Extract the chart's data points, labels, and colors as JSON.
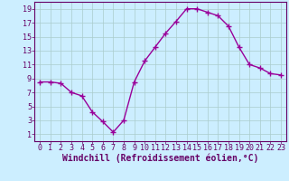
{
  "x": [
    0,
    1,
    2,
    3,
    4,
    5,
    6,
    7,
    8,
    9,
    10,
    11,
    12,
    13,
    14,
    15,
    16,
    17,
    18,
    19,
    20,
    21,
    22,
    23
  ],
  "y": [
    8.5,
    8.5,
    8.3,
    7.0,
    6.5,
    4.2,
    2.8,
    1.3,
    3.0,
    8.5,
    11.5,
    13.5,
    15.5,
    17.2,
    19.0,
    19.0,
    18.5,
    18.0,
    16.5,
    13.5,
    11.0,
    10.5,
    9.7,
    9.5
  ],
  "line_color": "#990099",
  "marker": "+",
  "marker_size": 4,
  "marker_color": "#990099",
  "line_width": 1.0,
  "bg_color": "#cceeff",
  "grid_color": "#aacccc",
  "xlabel": "Windchill (Refroidissement éolien,°C)",
  "xlabel_fontsize": 7,
  "xlim": [
    -0.5,
    23.5
  ],
  "ylim": [
    0,
    20
  ],
  "xticks": [
    0,
    1,
    2,
    3,
    4,
    5,
    6,
    7,
    8,
    9,
    10,
    11,
    12,
    13,
    14,
    15,
    16,
    17,
    18,
    19,
    20,
    21,
    22,
    23
  ],
  "yticks": [
    1,
    3,
    5,
    7,
    9,
    11,
    13,
    15,
    17,
    19
  ],
  "tick_fontsize": 6,
  "axis_color": "#660066"
}
